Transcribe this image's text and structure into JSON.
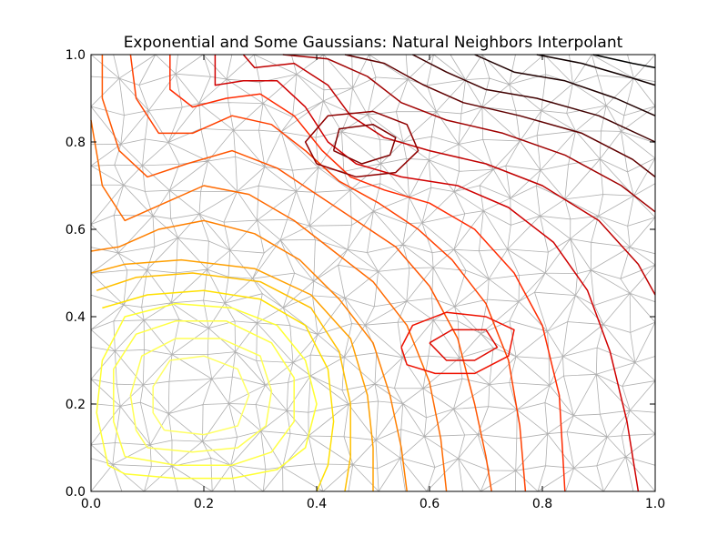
{
  "chart_data": {
    "type": "contour",
    "title": "Exponential and Some Gaussians: Natural Neighbors Interpolant",
    "xlabel": "",
    "ylabel": "",
    "xlim": [
      0.0,
      1.0
    ],
    "ylim": [
      0.0,
      1.0
    ],
    "x_ticks": [
      "0.0",
      "0.2",
      "0.4",
      "0.6",
      "0.8",
      "1.0"
    ],
    "y_ticks": [
      "0.0",
      "0.2",
      "0.4",
      "0.6",
      "0.8",
      "1.0"
    ],
    "grid": false,
    "background": {
      "type": "triangulation",
      "description": "Delaunay triangulation of scattered sample points",
      "color": "#b0b0b0"
    },
    "contours": [
      {
        "color": "#ffff33",
        "points": [
          [
            0.03,
            0.06
          ],
          [
            0.06,
            0.04
          ],
          [
            0.15,
            0.03
          ],
          [
            0.25,
            0.03
          ],
          [
            0.33,
            0.05
          ],
          [
            0.38,
            0.1
          ],
          [
            0.4,
            0.2
          ],
          [
            0.38,
            0.3
          ],
          [
            0.33,
            0.38
          ],
          [
            0.25,
            0.42
          ],
          [
            0.15,
            0.43
          ],
          [
            0.06,
            0.4
          ],
          [
            0.02,
            0.3
          ],
          [
            0.01,
            0.18
          ],
          [
            0.03,
            0.06
          ]
        ]
      },
      {
        "color": "#ffff44",
        "points": [
          [
            0.06,
            0.08
          ],
          [
            0.15,
            0.06
          ],
          [
            0.25,
            0.06
          ],
          [
            0.32,
            0.09
          ],
          [
            0.36,
            0.16
          ],
          [
            0.36,
            0.26
          ],
          [
            0.32,
            0.34
          ],
          [
            0.24,
            0.39
          ],
          [
            0.15,
            0.39
          ],
          [
            0.08,
            0.36
          ],
          [
            0.04,
            0.28
          ],
          [
            0.04,
            0.16
          ],
          [
            0.06,
            0.08
          ]
        ]
      },
      {
        "color": "#ffff55",
        "points": [
          [
            0.1,
            0.1
          ],
          [
            0.18,
            0.09
          ],
          [
            0.26,
            0.1
          ],
          [
            0.31,
            0.15
          ],
          [
            0.32,
            0.23
          ],
          [
            0.3,
            0.31
          ],
          [
            0.23,
            0.35
          ],
          [
            0.15,
            0.35
          ],
          [
            0.09,
            0.31
          ],
          [
            0.07,
            0.22
          ],
          [
            0.08,
            0.14
          ],
          [
            0.1,
            0.1
          ]
        ]
      },
      {
        "color": "#ffff66",
        "points": [
          [
            0.13,
            0.14
          ],
          [
            0.2,
            0.13
          ],
          [
            0.26,
            0.15
          ],
          [
            0.28,
            0.22
          ],
          [
            0.26,
            0.28
          ],
          [
            0.2,
            0.31
          ],
          [
            0.14,
            0.3
          ],
          [
            0.11,
            0.24
          ],
          [
            0.11,
            0.18
          ],
          [
            0.13,
            0.14
          ]
        ]
      },
      {
        "color": "#ffe000",
        "points": [
          [
            0.02,
            0.42
          ],
          [
            0.1,
            0.45
          ],
          [
            0.2,
            0.46
          ],
          [
            0.3,
            0.44
          ],
          [
            0.38,
            0.38
          ],
          [
            0.42,
            0.28
          ],
          [
            0.43,
            0.16
          ],
          [
            0.42,
            0.06
          ],
          [
            0.4,
            0.0
          ]
        ]
      },
      {
        "color": "#ffc000",
        "points": [
          [
            0.01,
            0.46
          ],
          [
            0.08,
            0.49
          ],
          [
            0.18,
            0.5
          ],
          [
            0.3,
            0.48
          ],
          [
            0.39,
            0.42
          ],
          [
            0.44,
            0.32
          ],
          [
            0.46,
            0.2
          ],
          [
            0.46,
            0.08
          ],
          [
            0.45,
            0.0
          ]
        ]
      },
      {
        "color": "#ffa000",
        "points": [
          [
            0.0,
            0.5
          ],
          [
            0.06,
            0.52
          ],
          [
            0.16,
            0.53
          ],
          [
            0.29,
            0.51
          ],
          [
            0.39,
            0.45
          ],
          [
            0.46,
            0.35
          ],
          [
            0.49,
            0.22
          ],
          [
            0.5,
            0.1
          ],
          [
            0.5,
            0.0
          ]
        ]
      },
      {
        "color": "#ff8000",
        "points": [
          [
            0.0,
            0.55
          ],
          [
            0.05,
            0.56
          ],
          [
            0.12,
            0.6
          ],
          [
            0.2,
            0.62
          ],
          [
            0.29,
            0.59
          ],
          [
            0.37,
            0.53
          ],
          [
            0.44,
            0.44
          ],
          [
            0.5,
            0.34
          ],
          [
            0.53,
            0.22
          ],
          [
            0.55,
            0.1
          ],
          [
            0.56,
            0.0
          ]
        ]
      },
      {
        "color": "#ff6a00",
        "points": [
          [
            0.0,
            0.85
          ],
          [
            0.02,
            0.7
          ],
          [
            0.06,
            0.62
          ],
          [
            0.13,
            0.66
          ],
          [
            0.2,
            0.7
          ],
          [
            0.28,
            0.68
          ],
          [
            0.36,
            0.62
          ],
          [
            0.43,
            0.55
          ],
          [
            0.5,
            0.48
          ],
          [
            0.56,
            0.38
          ],
          [
            0.6,
            0.25
          ],
          [
            0.62,
            0.12
          ],
          [
            0.63,
            0.0
          ]
        ]
      },
      {
        "color": "#ff5500",
        "points": [
          [
            0.02,
            1.0
          ],
          [
            0.02,
            0.9
          ],
          [
            0.05,
            0.78
          ],
          [
            0.1,
            0.72
          ],
          [
            0.17,
            0.75
          ],
          [
            0.25,
            0.78
          ],
          [
            0.33,
            0.74
          ],
          [
            0.4,
            0.68
          ],
          [
            0.47,
            0.62
          ],
          [
            0.54,
            0.56
          ],
          [
            0.6,
            0.47
          ],
          [
            0.65,
            0.35
          ],
          [
            0.68,
            0.2
          ],
          [
            0.7,
            0.08
          ],
          [
            0.71,
            0.0
          ]
        ]
      },
      {
        "color": "#ff4000",
        "points": [
          [
            0.07,
            1.0
          ],
          [
            0.08,
            0.9
          ],
          [
            0.12,
            0.82
          ],
          [
            0.18,
            0.82
          ],
          [
            0.25,
            0.86
          ],
          [
            0.32,
            0.84
          ],
          [
            0.38,
            0.78
          ],
          [
            0.44,
            0.71
          ],
          [
            0.51,
            0.66
          ],
          [
            0.58,
            0.6
          ],
          [
            0.64,
            0.53
          ],
          [
            0.7,
            0.43
          ],
          [
            0.74,
            0.3
          ],
          [
            0.76,
            0.15
          ],
          [
            0.77,
            0.0
          ]
        ]
      },
      {
        "color": "#ff2a00",
        "points": [
          [
            0.14,
            1.0
          ],
          [
            0.14,
            0.92
          ],
          [
            0.18,
            0.88
          ],
          [
            0.24,
            0.9
          ],
          [
            0.3,
            0.91
          ],
          [
            0.36,
            0.86
          ],
          [
            0.41,
            0.78
          ],
          [
            0.46,
            0.72
          ],
          [
            0.52,
            0.69
          ],
          [
            0.6,
            0.66
          ],
          [
            0.68,
            0.6
          ],
          [
            0.75,
            0.5
          ],
          [
            0.8,
            0.38
          ],
          [
            0.83,
            0.22
          ],
          [
            0.84,
            0.0
          ]
        ]
      },
      {
        "color": "#ee1100",
        "points": [
          [
            0.55,
            0.33
          ],
          [
            0.57,
            0.38
          ],
          [
            0.63,
            0.41
          ],
          [
            0.7,
            0.4
          ],
          [
            0.75,
            0.37
          ],
          [
            0.74,
            0.31
          ],
          [
            0.68,
            0.27
          ],
          [
            0.61,
            0.27
          ],
          [
            0.56,
            0.29
          ],
          [
            0.55,
            0.33
          ]
        ]
      },
      {
        "color": "#e00a00",
        "points": [
          [
            0.6,
            0.34
          ],
          [
            0.64,
            0.37
          ],
          [
            0.7,
            0.37
          ],
          [
            0.72,
            0.33
          ],
          [
            0.68,
            0.3
          ],
          [
            0.63,
            0.3
          ],
          [
            0.6,
            0.34
          ]
        ]
      },
      {
        "color": "#d00000",
        "points": [
          [
            0.22,
            1.0
          ],
          [
            0.22,
            0.93
          ],
          [
            0.27,
            0.94
          ],
          [
            0.33,
            0.94
          ],
          [
            0.38,
            0.88
          ],
          [
            0.42,
            0.8
          ],
          [
            0.47,
            0.75
          ],
          [
            0.55,
            0.72
          ],
          [
            0.65,
            0.7
          ],
          [
            0.74,
            0.65
          ],
          [
            0.82,
            0.57
          ],
          [
            0.88,
            0.46
          ],
          [
            0.92,
            0.32
          ],
          [
            0.95,
            0.16
          ],
          [
            0.97,
            0.0
          ]
        ]
      },
      {
        "color": "#c00000",
        "points": [
          [
            0.27,
            1.0
          ],
          [
            0.29,
            0.97
          ],
          [
            0.36,
            0.98
          ],
          [
            0.42,
            0.93
          ],
          [
            0.46,
            0.86
          ],
          [
            0.52,
            0.81
          ],
          [
            0.6,
            0.78
          ],
          [
            0.7,
            0.75
          ],
          [
            0.8,
            0.7
          ],
          [
            0.9,
            0.62
          ],
          [
            0.97,
            0.52
          ],
          [
            1.0,
            0.45
          ]
        ]
      },
      {
        "color": "#a00000",
        "points": [
          [
            0.34,
            1.0
          ],
          [
            0.42,
            0.99
          ],
          [
            0.49,
            0.95
          ],
          [
            0.55,
            0.89
          ],
          [
            0.63,
            0.85
          ],
          [
            0.73,
            0.82
          ],
          [
            0.84,
            0.77
          ],
          [
            0.94,
            0.7
          ],
          [
            1.0,
            0.64
          ]
        ]
      },
      {
        "color": "#900000",
        "points": [
          [
            0.4,
            0.75
          ],
          [
            0.38,
            0.8
          ],
          [
            0.42,
            0.86
          ],
          [
            0.5,
            0.87
          ],
          [
            0.56,
            0.84
          ],
          [
            0.58,
            0.78
          ],
          [
            0.54,
            0.73
          ],
          [
            0.47,
            0.72
          ],
          [
            0.4,
            0.75
          ]
        ]
      },
      {
        "color": "#800000",
        "points": [
          [
            0.43,
            0.78
          ],
          [
            0.44,
            0.83
          ],
          [
            0.5,
            0.84
          ],
          [
            0.54,
            0.81
          ],
          [
            0.53,
            0.77
          ],
          [
            0.48,
            0.75
          ],
          [
            0.43,
            0.78
          ]
        ]
      },
      {
        "color": "#600000",
        "points": [
          [
            0.45,
            1.0
          ],
          [
            0.52,
            0.98
          ],
          [
            0.59,
            0.93
          ],
          [
            0.66,
            0.89
          ],
          [
            0.76,
            0.86
          ],
          [
            0.87,
            0.82
          ],
          [
            0.96,
            0.76
          ],
          [
            1.0,
            0.72
          ]
        ]
      },
      {
        "color": "#400000",
        "points": [
          [
            0.57,
            1.0
          ],
          [
            0.63,
            0.96
          ],
          [
            0.7,
            0.92
          ],
          [
            0.79,
            0.9
          ],
          [
            0.9,
            0.86
          ],
          [
            1.0,
            0.8
          ]
        ]
      },
      {
        "color": "#200000",
        "points": [
          [
            0.68,
            1.0
          ],
          [
            0.75,
            0.96
          ],
          [
            0.84,
            0.94
          ],
          [
            0.93,
            0.9
          ],
          [
            1.0,
            0.86
          ]
        ]
      },
      {
        "color": "#100000",
        "points": [
          [
            0.79,
            1.0
          ],
          [
            0.87,
            0.98
          ],
          [
            0.95,
            0.95
          ],
          [
            1.0,
            0.93
          ]
        ]
      },
      {
        "color": "#000000",
        "points": [
          [
            0.89,
            1.0
          ],
          [
            0.96,
            0.98
          ],
          [
            1.0,
            0.97
          ]
        ]
      }
    ]
  }
}
